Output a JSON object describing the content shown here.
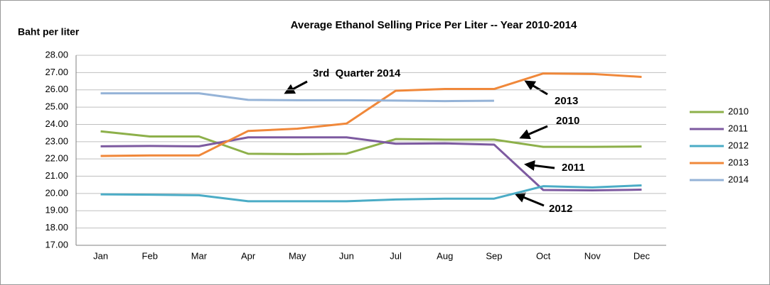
{
  "chart_data": {
    "type": "line",
    "title": "Average Ethanol Selling Price Per Liter -- Year 2010-2014",
    "y_label": "Baht per liter",
    "categories": [
      "Jan",
      "Feb",
      "Mar",
      "Apr",
      "May",
      "Jun",
      "Jul",
      "Aug",
      "Sep",
      "Oct",
      "Nov",
      "Dec"
    ],
    "series": [
      {
        "name": "2010",
        "color": "#8db04a",
        "values": [
          23.6,
          23.3,
          23.3,
          22.3,
          22.28,
          22.3,
          23.15,
          23.12,
          23.12,
          22.7,
          22.7,
          22.72
        ]
      },
      {
        "name": "2011",
        "color": "#7d5aa0",
        "values": [
          22.73,
          22.75,
          22.73,
          23.25,
          23.25,
          23.25,
          22.88,
          22.9,
          22.83,
          20.2,
          20.18,
          20.22
        ]
      },
      {
        "name": "2012",
        "color": "#4bacc6",
        "values": [
          19.95,
          19.93,
          19.9,
          19.55,
          19.55,
          19.55,
          19.65,
          19.7,
          19.7,
          20.42,
          20.35,
          20.47
        ]
      },
      {
        "name": "2013",
        "color": "#f0883a",
        "values": [
          22.17,
          22.2,
          22.2,
          23.62,
          23.75,
          24.05,
          25.95,
          26.05,
          26.05,
          26.95,
          26.92,
          26.75
        ]
      },
      {
        "name": "2014",
        "color": "#95b3d7",
        "values": [
          25.8,
          25.8,
          25.8,
          25.42,
          25.4,
          25.4,
          25.38,
          25.35,
          25.37,
          null,
          null,
          null
        ]
      }
    ],
    "ylim": [
      17,
      28
    ],
    "yticks": [
      {
        "value": 17,
        "label": "17.00"
      },
      {
        "value": 18,
        "label": "18.00"
      },
      {
        "value": 19,
        "label": "19.00"
      },
      {
        "value": 20,
        "label": "20.00"
      },
      {
        "value": 21,
        "label": "21.00"
      },
      {
        "value": 22,
        "label": "22.00"
      },
      {
        "value": 23,
        "label": "23.00"
      },
      {
        "value": 24,
        "label": "24.00"
      },
      {
        "value": 25,
        "label": "25.00"
      },
      {
        "value": 26,
        "label": "26.00"
      },
      {
        "value": 27,
        "label": "27.00"
      },
      {
        "value": 28,
        "label": "28.00"
      }
    ],
    "grid": true,
    "legend": "right",
    "annotations": [
      "3rd  Quarter 2014",
      "2013",
      "2010",
      "2011",
      "2012"
    ]
  }
}
